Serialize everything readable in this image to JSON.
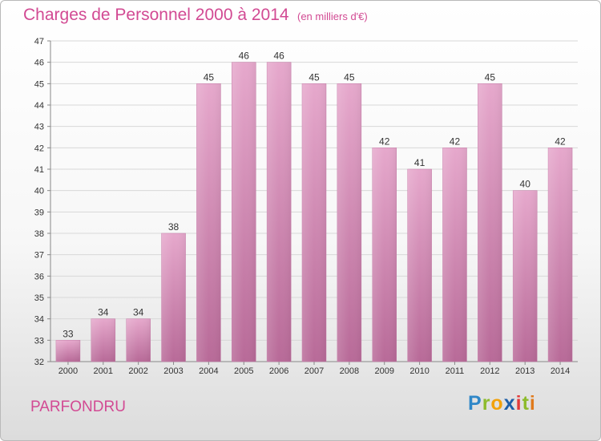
{
  "chart_data": {
    "type": "bar",
    "title": "Charges de Personnel 2000 à 2014",
    "subtitle": "(en milliers d'€)",
    "categories": [
      "2000",
      "2001",
      "2002",
      "2003",
      "2004",
      "2005",
      "2006",
      "2007",
      "2008",
      "2009",
      "2010",
      "2011",
      "2012",
      "2013",
      "2014"
    ],
    "values": [
      33,
      34,
      34,
      38,
      45,
      46,
      46,
      45,
      45,
      42,
      41,
      42,
      45,
      40,
      42
    ],
    "ylim": [
      32,
      47
    ],
    "yticks": [
      32,
      33,
      34,
      35,
      36,
      37,
      38,
      39,
      40,
      41,
      42,
      43,
      44,
      45,
      46,
      47
    ],
    "grid": true,
    "bar_color": "#d98cb8"
  },
  "place": "PARFONDRU",
  "logo": {
    "p": "P",
    "r": "r",
    "o": "o",
    "x": "x",
    "i1": "i",
    "t": "t",
    "i2": "i"
  }
}
